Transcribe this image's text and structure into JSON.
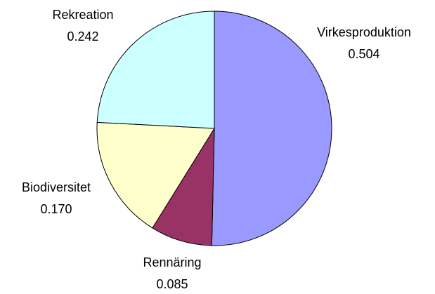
{
  "chart_data": {
    "type": "pie",
    "categories": [
      "Virkesproduktion",
      "Rennäring",
      "Biodiversitet",
      "Rekreation"
    ],
    "values": [
      0.504,
      0.085,
      0.17,
      0.242
    ],
    "value_labels": [
      "0.504",
      "0.085",
      "0.170",
      "0.242"
    ],
    "colors": [
      "#9999ff",
      "#993366",
      "#ffffcc",
      "#ccffff"
    ]
  }
}
